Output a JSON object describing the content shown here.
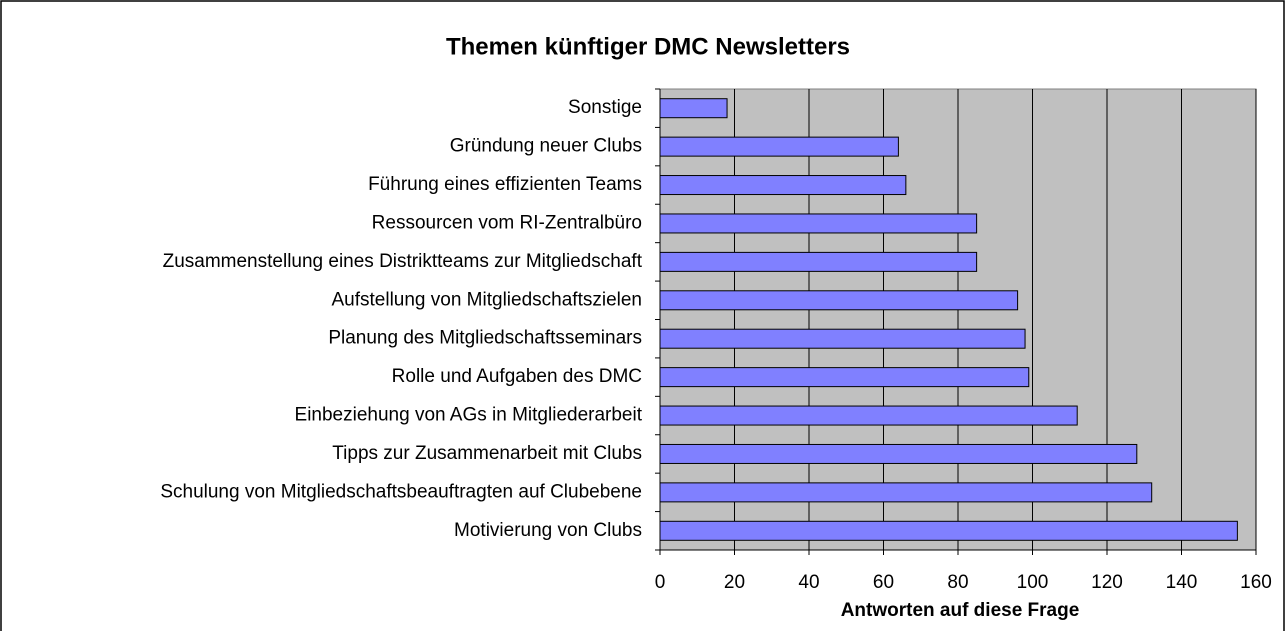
{
  "chart_data": {
    "type": "bar",
    "orientation": "horizontal",
    "title": "Themen künftiger DMC Newsletters",
    "x_label": "Antworten auf diese Frage",
    "categories": [
      "Sonstige",
      "Gründung neuer Clubs",
      "Führung eines effizienten Teams",
      "Ressourcen vom RI-Zentralbüro",
      "Zusammenstellung eines Distriktteams zur Mitgliedschaft",
      "Aufstellung von Mitgliedschaftszielen",
      "Planung des Mitgliedschaftsseminars",
      "Rolle und Aufgaben des DMC",
      "Einbeziehung von AGs in Mitgliederarbeit",
      "Tipps zur Zusammenarbeit mit Clubs",
      "Schulung von Mitgliedschaftsbeauftragten auf Clubebene",
      "Motivierung von Clubs"
    ],
    "values": [
      18,
      64,
      66,
      85,
      85,
      96,
      98,
      99,
      112,
      128,
      132,
      155
    ],
    "color": "#8080ff",
    "plot_background": "#c0c0c0",
    "xlim": [
      0,
      160
    ],
    "xticks": [
      0,
      20,
      40,
      60,
      80,
      100,
      120,
      140,
      160
    ],
    "grid": true
  }
}
